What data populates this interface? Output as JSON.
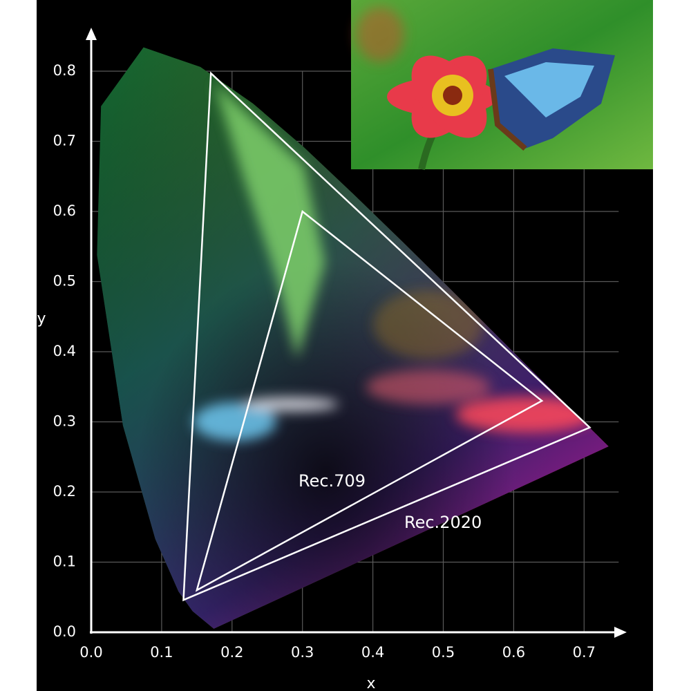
{
  "chart_data": {
    "type": "line",
    "xlabel": "x",
    "ylabel": "y",
    "xlim": [
      0,
      0.76
    ],
    "ylim": [
      0,
      0.86
    ],
    "xticks": [
      {
        "value": 0,
        "label": "0.0"
      },
      {
        "value": 0.1,
        "label": "0.1"
      },
      {
        "value": 0.2,
        "label": "0.2"
      },
      {
        "value": 0.3,
        "label": "0.3"
      },
      {
        "value": 0.4,
        "label": "0.4"
      },
      {
        "value": 0.5,
        "label": "0.5"
      },
      {
        "value": 0.6,
        "label": "0.6"
      },
      {
        "value": 0.7,
        "label": "0.7"
      }
    ],
    "yticks": [
      {
        "value": 0,
        "label": "0.0"
      },
      {
        "value": 0.1,
        "label": "0.1"
      },
      {
        "value": 0.2,
        "label": "0.2"
      },
      {
        "value": 0.3,
        "label": "0.3"
      },
      {
        "value": 0.4,
        "label": "0.4"
      },
      {
        "value": 0.5,
        "label": "0.5"
      },
      {
        "value": 0.6,
        "label": "0.6"
      },
      {
        "value": 0.7,
        "label": "0.7"
      },
      {
        "value": 0.8,
        "label": "0.8"
      }
    ],
    "grid": true,
    "series": [
      {
        "name": "Rec.709",
        "color": "#ffffff",
        "x": [
          0.64,
          0.3,
          0.15
        ],
        "values": [
          0.33,
          0.6,
          0.06
        ]
      },
      {
        "name": "Rec.2020",
        "color": "#ffffff",
        "x": [
          0.708,
          0.17,
          0.131
        ],
        "values": [
          0.292,
          0.797,
          0.046
        ]
      }
    ]
  }
}
